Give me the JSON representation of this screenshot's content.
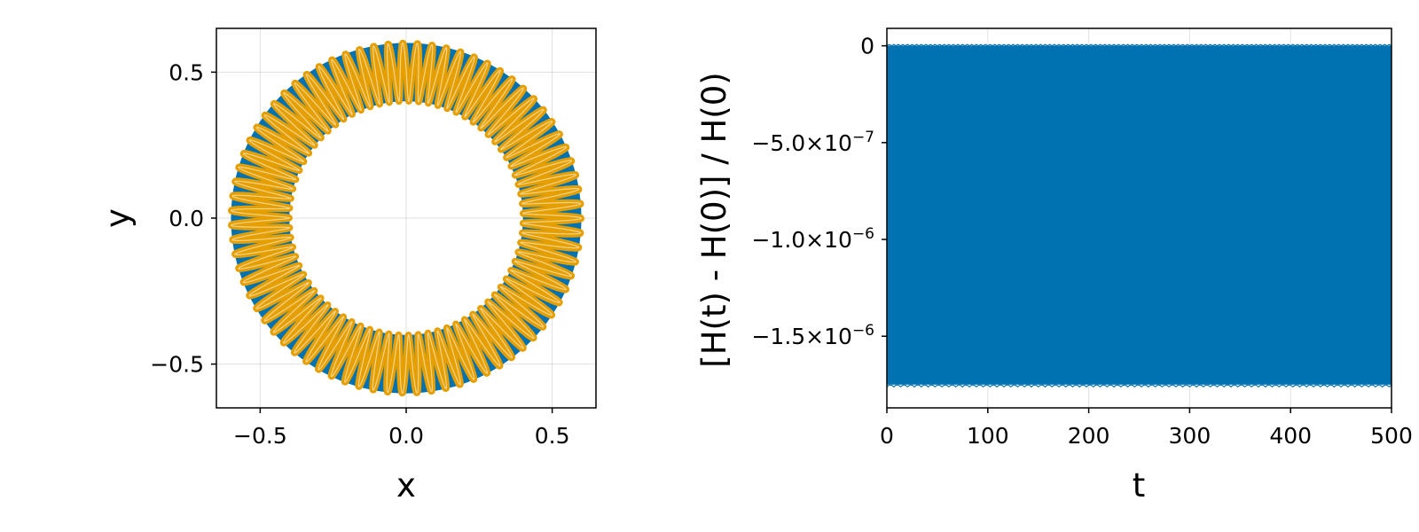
{
  "colors": {
    "series_primary": "#0072b2",
    "series_secondary": "#e69f00",
    "axis": "#000000",
    "grid": "#e5e5e5",
    "background": "#ffffff"
  },
  "chart_data": [
    {
      "type": "line",
      "subtype": "phase-space-orbit",
      "title": "",
      "xlabel": "x",
      "ylabel": "y",
      "xlim": [
        -0.65,
        0.65
      ],
      "ylim": [
        -0.65,
        0.65
      ],
      "xticks": [
        -0.5,
        0.0,
        0.5
      ],
      "yticks": [
        -0.5,
        0.0,
        0.5
      ],
      "xtick_labels": [
        "−0.5",
        "0.0",
        "0.5"
      ],
      "ytick_labels": [
        "−0.5",
        "0.0",
        "0.5"
      ],
      "grid": true,
      "legend": "none",
      "series": [
        {
          "color": "#0072b2",
          "shape": "rosette annulus",
          "inner_radius": 0.4,
          "outer_radius": 0.6
        },
        {
          "color": "#e69f00",
          "shape": "rosette annulus",
          "inner_radius": 0.4,
          "outer_radius": 0.6
        }
      ]
    },
    {
      "type": "line",
      "title": "",
      "xlabel": "t",
      "ylabel": "[H(t) - H(0)] / H(0)",
      "xlim": [
        0,
        500
      ],
      "ylim": [
        -1.87e-06,
        9e-08
      ],
      "xticks": [
        0,
        100,
        200,
        300,
        400,
        500
      ],
      "xtick_labels": [
        "0",
        "100",
        "200",
        "300",
        "400",
        "500"
      ],
      "yticks": [
        0,
        -5e-07,
        -1e-06,
        -1.5e-06
      ],
      "ytick_labels": [
        {
          "mantissa": "0",
          "exponent": ""
        },
        {
          "mantissa": "−5.0×10",
          "exponent": "−7"
        },
        {
          "mantissa": "−1.0×10",
          "exponent": "−6"
        },
        {
          "mantissa": "−1.5×10",
          "exponent": "−6"
        }
      ],
      "grid": true,
      "legend": "none",
      "series": [
        {
          "color": "#0072b2",
          "description": "rapid oscillation filling band",
          "min": -1.75e-06,
          "max": 0.0
        }
      ]
    }
  ]
}
